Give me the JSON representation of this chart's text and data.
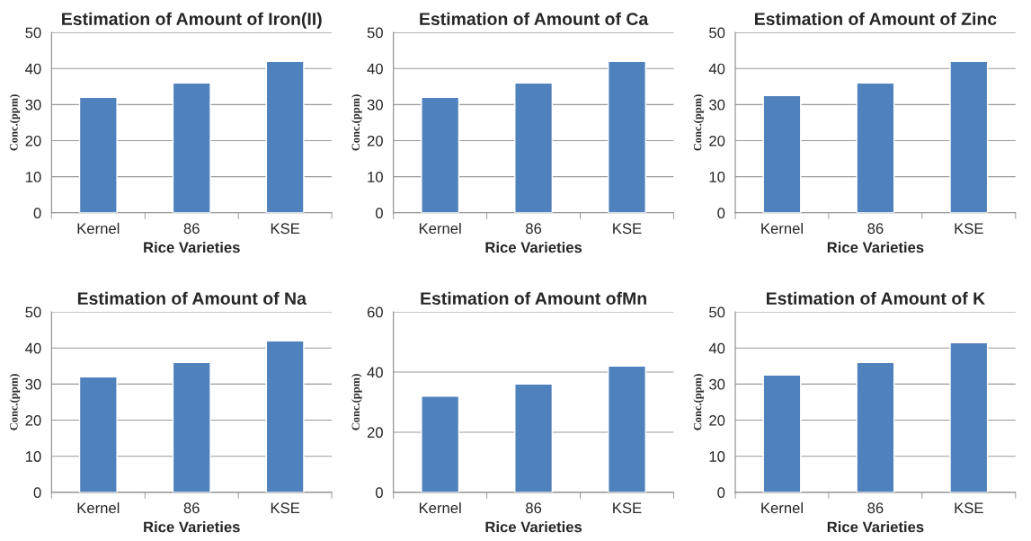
{
  "chart_data": [
    {
      "type": "bar",
      "title": "Estimation of Amount of Iron(II)",
      "xlabel": "Rice Varieties",
      "ylabel": "Conc.(ppm)",
      "categories": [
        "Kernel",
        "86",
        "KSE"
      ],
      "values": [
        32,
        36,
        42
      ],
      "color": "#4f81bd",
      "ylim": [
        0,
        50
      ],
      "yticks": [
        0,
        10,
        20,
        30,
        40,
        50
      ],
      "grid": "y"
    },
    {
      "type": "bar",
      "title": "Estimation of Amount of Ca",
      "xlabel": "Rice Varieties",
      "ylabel": "Conc.(ppm)",
      "categories": [
        "Kernel",
        "86",
        "KSE"
      ],
      "values": [
        32,
        36,
        42
      ],
      "color": "#4f81bd",
      "ylim": [
        0,
        50
      ],
      "yticks": [
        0,
        10,
        20,
        30,
        40,
        50
      ],
      "grid": "y"
    },
    {
      "type": "bar",
      "title": "Estimation of Amount of Zinc",
      "xlabel": "Rice Varieties",
      "ylabel": "Conc.(ppm)",
      "categories": [
        "Kernel",
        "86",
        "KSE"
      ],
      "values": [
        32.5,
        36,
        42
      ],
      "color": "#4f81bd",
      "ylim": [
        0,
        50
      ],
      "yticks": [
        0,
        10,
        20,
        30,
        40,
        50
      ],
      "grid": "y"
    },
    {
      "type": "bar",
      "title": "Estimation of Amount of Na",
      "xlabel": "Rice Varieties",
      "ylabel": "Conc.(ppm)",
      "categories": [
        "Kernel",
        "86",
        "KSE"
      ],
      "values": [
        32,
        36,
        42
      ],
      "color": "#4f81bd",
      "ylim": [
        0,
        50
      ],
      "yticks": [
        0,
        10,
        20,
        30,
        40,
        50
      ],
      "grid": "y"
    },
    {
      "type": "bar",
      "title": "Estimation of Amount ofMn",
      "xlabel": "Rice Varieties",
      "ylabel": "Conc.(ppm)",
      "categories": [
        "Kernel",
        "86",
        "KSE"
      ],
      "values": [
        32,
        36,
        42
      ],
      "color": "#4f81bd",
      "ylim": [
        0,
        60
      ],
      "yticks": [
        0,
        20,
        40,
        60
      ],
      "grid": "y"
    },
    {
      "type": "bar",
      "title": "Estimation of Amount of K",
      "xlabel": "Rice Varieties",
      "ylabel": "Conc.(ppm)",
      "categories": [
        "Kernel",
        "86",
        "KSE"
      ],
      "values": [
        32.5,
        36,
        41.5
      ],
      "color": "#4f81bd",
      "ylim": [
        0,
        50
      ],
      "yticks": [
        0,
        10,
        20,
        30,
        40,
        50
      ],
      "grid": "y"
    }
  ]
}
